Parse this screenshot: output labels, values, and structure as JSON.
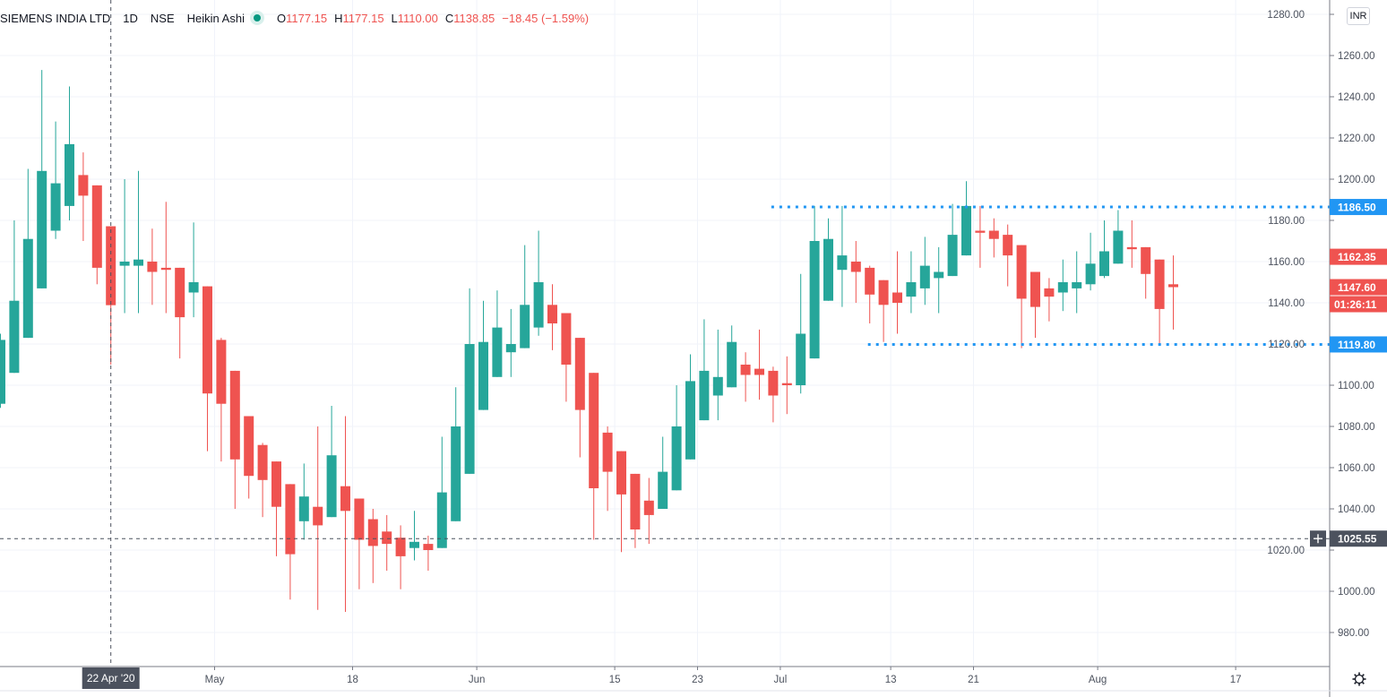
{
  "legend": {
    "symbol": "SIEMENS INDIA LTD",
    "interval": "1D",
    "exchange": "NSE",
    "chart_style": "Heikin Ashi",
    "open_label": "O",
    "open": "1177.15",
    "high_label": "H",
    "high": "1177.15",
    "low_label": "L",
    "low": "1110.00",
    "close_label": "C",
    "close": "1138.85",
    "change": "−18.45 (−1.59%)"
  },
  "currency_button": "INR",
  "icons": {
    "settings": "gear-icon",
    "status": "market-status-dot",
    "crosshair_add": "plus-icon"
  },
  "colors": {
    "up": "#26a69a",
    "down": "#ef5350",
    "line": "#2196f3",
    "crosshair": "#4c525e"
  },
  "chart_data": {
    "type": "candlestick",
    "title": "SIEMENS INDIA LTD · 1D · NSE · Heikin Ashi",
    "ylim": [
      970,
      1282
    ],
    "y_ticks": [
      "980.00",
      "1000.00",
      "1020.00",
      "1040.00",
      "1060.00",
      "1080.00",
      "1100.00",
      "1120.00",
      "1140.00",
      "1160.00",
      "1180.00",
      "1200.00",
      "1220.00",
      "1240.00",
      "1260.00",
      "1280.00"
    ],
    "x_ticks": [
      {
        "label": "May",
        "index": 15
      },
      {
        "label": "18",
        "index": 25
      },
      {
        "label": "Jun",
        "index": 34
      },
      {
        "label": "15",
        "index": 44
      },
      {
        "label": "23",
        "index": 50
      },
      {
        "label": "Jul",
        "index": 56
      },
      {
        "label": "13",
        "index": 64
      },
      {
        "label": "21",
        "index": 70
      },
      {
        "label": "Aug",
        "index": 79
      },
      {
        "label": "17",
        "index": 89
      }
    ],
    "grid": true,
    "ohlc": [
      [
        1091,
        1125,
        1089,
        1122
      ],
      [
        1106,
        1180,
        1106,
        1141
      ],
      [
        1123,
        1205,
        1123,
        1171
      ],
      [
        1147,
        1253,
        1147,
        1204
      ],
      [
        1175,
        1228,
        1171,
        1198
      ],
      [
        1187,
        1245,
        1180,
        1217
      ],
      [
        1202,
        1213,
        1170,
        1192
      ],
      [
        1197,
        1197,
        1149,
        1157
      ],
      [
        1177.15,
        1177.15,
        1110,
        1138.85
      ],
      [
        1158,
        1200,
        1135,
        1160
      ],
      [
        1158,
        1204,
        1135,
        1161
      ],
      [
        1160,
        1176,
        1139,
        1155
      ],
      [
        1157,
        1189,
        1135,
        1156
      ],
      [
        1157,
        1157,
        1113,
        1133
      ],
      [
        1145,
        1179,
        1133,
        1150
      ],
      [
        1148,
        1148,
        1068,
        1096
      ],
      [
        1122,
        1123,
        1063,
        1091
      ],
      [
        1107,
        1107,
        1040,
        1064
      ],
      [
        1085,
        1085,
        1045,
        1056
      ],
      [
        1071,
        1072,
        1036,
        1054
      ],
      [
        1063,
        1063,
        1017,
        1041
      ],
      [
        1052,
        1052,
        996,
        1018
      ],
      [
        1034,
        1062,
        1025,
        1046
      ],
      [
        1041,
        1080,
        991,
        1032
      ],
      [
        1036,
        1090,
        1036,
        1066
      ],
      [
        1051,
        1085,
        990,
        1039
      ],
      [
        1045,
        1045,
        1001,
        1025
      ],
      [
        1035,
        1040,
        1004,
        1022
      ],
      [
        1029,
        1037,
        1010,
        1023
      ],
      [
        1026,
        1032,
        1001,
        1017
      ],
      [
        1021,
        1039,
        1015,
        1024
      ],
      [
        1023,
        1027,
        1010,
        1020
      ],
      [
        1021,
        1075,
        1021,
        1048
      ],
      [
        1034,
        1099,
        1034,
        1080
      ],
      [
        1057,
        1147,
        1057,
        1120
      ],
      [
        1088,
        1141,
        1088,
        1121
      ],
      [
        1104,
        1146,
        1104,
        1128
      ],
      [
        1116,
        1137,
        1104,
        1120
      ],
      [
        1118,
        1168,
        1118,
        1139
      ],
      [
        1128,
        1175,
        1124,
        1150
      ],
      [
        1139,
        1149,
        1117,
        1130
      ],
      [
        1135,
        1135,
        1092,
        1110
      ],
      [
        1123,
        1123,
        1065,
        1088
      ],
      [
        1106,
        1106,
        1025,
        1050
      ],
      [
        1077,
        1080,
        1039,
        1058
      ],
      [
        1068,
        1068,
        1019,
        1047
      ],
      [
        1057,
        1057,
        1021,
        1030
      ],
      [
        1044,
        1055,
        1023,
        1037
      ],
      [
        1040,
        1075,
        1040,
        1058
      ],
      [
        1049,
        1100,
        1049,
        1080
      ],
      [
        1064,
        1115,
        1064,
        1102
      ],
      [
        1083,
        1132,
        1083,
        1107
      ],
      [
        1095,
        1127,
        1083,
        1104
      ],
      [
        1099,
        1129,
        1099,
        1121
      ],
      [
        1110,
        1116,
        1092,
        1105
      ],
      [
        1108,
        1127,
        1093,
        1105
      ],
      [
        1107,
        1109,
        1082,
        1095
      ],
      [
        1101,
        1114,
        1086,
        1100
      ],
      [
        1100,
        1154,
        1096,
        1125
      ],
      [
        1113,
        1187,
        1113,
        1170
      ],
      [
        1141,
        1181,
        1141,
        1171
      ],
      [
        1156,
        1187,
        1138,
        1163
      ],
      [
        1160,
        1170,
        1140,
        1155
      ],
      [
        1157,
        1158,
        1130,
        1144
      ],
      [
        1151,
        1151,
        1121,
        1139
      ],
      [
        1145,
        1165,
        1125,
        1140
      ],
      [
        1143,
        1165,
        1135,
        1150
      ],
      [
        1147,
        1172,
        1139,
        1158
      ],
      [
        1152,
        1167,
        1135,
        1155
      ],
      [
        1153,
        1188,
        1153,
        1173
      ],
      [
        1163,
        1199,
        1163,
        1187
      ],
      [
        1175,
        1187,
        1157,
        1174
      ],
      [
        1175,
        1181,
        1162,
        1171
      ],
      [
        1173,
        1178,
        1148,
        1163
      ],
      [
        1168,
        1168,
        1118,
        1142
      ],
      [
        1155,
        1155,
        1123,
        1138
      ],
      [
        1147,
        1152,
        1131,
        1143
      ],
      [
        1145,
        1161,
        1136,
        1150
      ],
      [
        1147,
        1165,
        1135,
        1150
      ],
      [
        1149,
        1174,
        1146,
        1159
      ],
      [
        1153,
        1180,
        1152,
        1165
      ],
      [
        1159,
        1185,
        1159,
        1175
      ],
      [
        1167,
        1180,
        1157,
        1166
      ],
      [
        1167,
        1167,
        1142,
        1154
      ],
      [
        1161,
        1161,
        1120,
        1137
      ],
      [
        1149,
        1163,
        1127,
        1147.6
      ]
    ],
    "horizontal_lines": [
      {
        "price": 1186.5,
        "label": "1186.50",
        "start_index": 56
      },
      {
        "price": 1119.8,
        "label": "1119.80",
        "start_index": 63
      }
    ],
    "price_labels": [
      {
        "price": 1162.35,
        "label": "1162.35"
      },
      {
        "price": 1147.6,
        "label": "1147.60",
        "countdown": "01:26:11"
      }
    ],
    "crosshair": {
      "index": 8,
      "price": 1025.55,
      "price_label": "1025.55",
      "date_label": "22 Apr '20"
    }
  }
}
